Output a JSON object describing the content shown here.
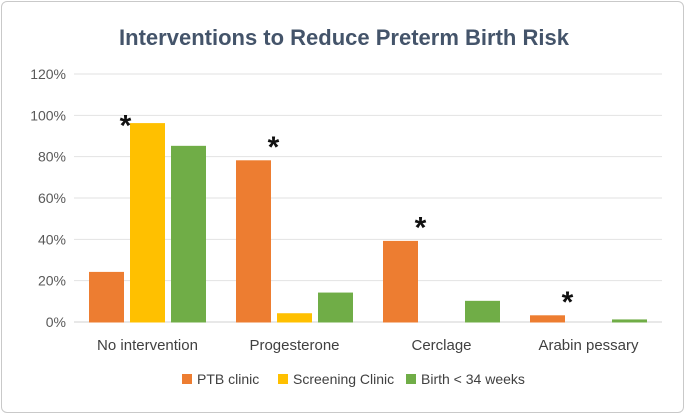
{
  "chart_data": {
    "type": "bar",
    "title": "Interventions to Reduce Preterm Birth Risk",
    "categories": [
      "No intervention",
      "Progesterone",
      "Cerclage",
      "Arabin pessary"
    ],
    "series": [
      {
        "name": "PTB clinic",
        "values": [
          24,
          78,
          39,
          3
        ],
        "color": "#ed7d31"
      },
      {
        "name": "Screening Clinic",
        "values": [
          96,
          4,
          0,
          0
        ],
        "color": "#ffc000"
      },
      {
        "name": "Birth < 34 weeks",
        "values": [
          85,
          14,
          10,
          1
        ],
        "color": "#70ad47"
      }
    ],
    "ylim": [
      0,
      120
    ],
    "yticks": [
      0,
      20,
      40,
      60,
      80,
      100,
      120
    ],
    "ytick_labels": [
      "0%",
      "20%",
      "40%",
      "60%",
      "80%",
      "100%",
      "120%"
    ],
    "grid": true,
    "legend_position": "bottom",
    "significance_marker": "*",
    "significance_categories": [
      0,
      1,
      2,
      3
    ]
  }
}
